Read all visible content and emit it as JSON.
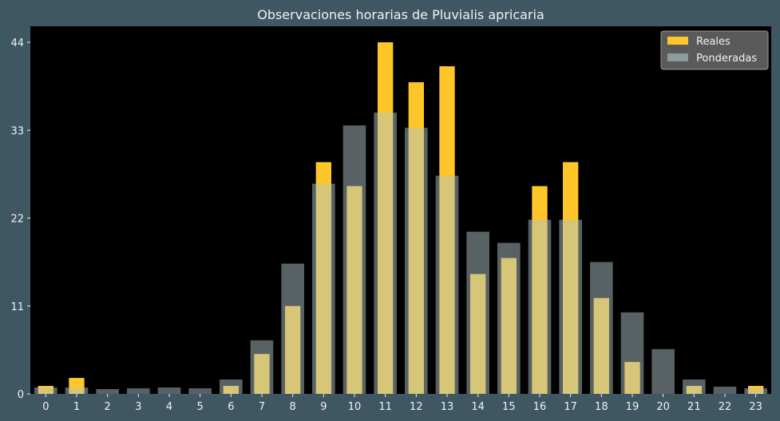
{
  "chart_data": {
    "type": "bar",
    "title": "Observaciones horarias de Pluvialis apricaria",
    "xlabel": "",
    "ylabel": "",
    "categories": [
      "0",
      "1",
      "2",
      "3",
      "4",
      "5",
      "6",
      "7",
      "8",
      "9",
      "10",
      "11",
      "12",
      "13",
      "14",
      "15",
      "16",
      "17",
      "18",
      "19",
      "20",
      "21",
      "22",
      "23"
    ],
    "yticks": [
      0,
      11,
      22,
      33,
      44
    ],
    "ylim": [
      0,
      46
    ],
    "grid": false,
    "legend_position": "top-right",
    "background": "#000000",
    "series": [
      {
        "name": "Reales",
        "color": "#ffc629",
        "values": [
          1,
          2,
          0,
          0,
          0,
          0,
          1,
          5,
          11,
          29,
          26,
          44,
          39,
          41,
          15,
          17,
          26,
          29,
          12,
          4,
          0,
          1,
          0,
          1
        ]
      },
      {
        "name": "Ponderadas",
        "color": "#b0c4c7",
        "values": [
          0.8,
          0.8,
          0.6,
          0.7,
          0.8,
          0.7,
          1.8,
          6.7,
          16.3,
          26.3,
          33.6,
          35.2,
          33.3,
          27.3,
          20.3,
          18.9,
          21.8,
          21.8,
          16.5,
          10.2,
          5.6,
          1.8,
          0.9,
          0.7
        ]
      }
    ]
  }
}
